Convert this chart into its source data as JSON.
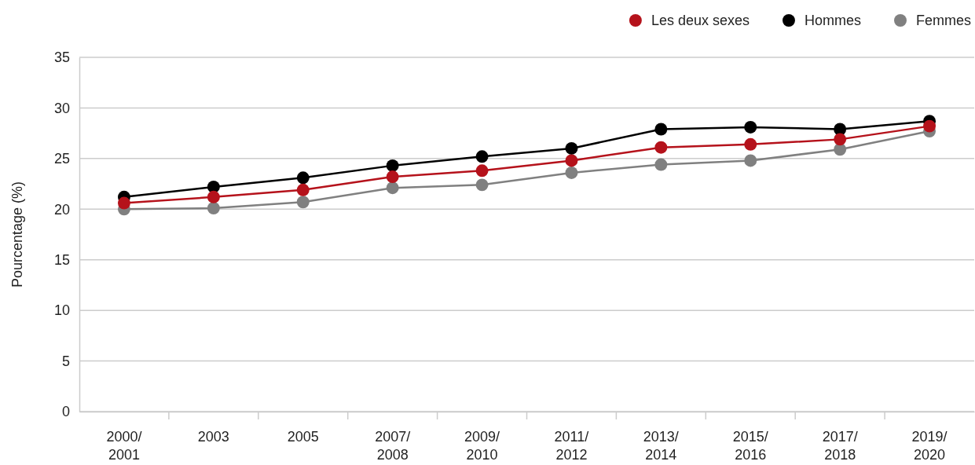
{
  "chart_data": {
    "type": "line",
    "ylabel": "Pourcentage (%)",
    "categories": [
      "2000/2001",
      "2003",
      "2005",
      "2007/2008",
      "2009/2010",
      "2011/2012",
      "2013/2014",
      "2015/2016",
      "2017/2018",
      "2019/2020"
    ],
    "series": [
      {
        "name": "Les deux sexes",
        "color": "#b5121b",
        "values": [
          20.6,
          21.2,
          21.9,
          23.2,
          23.8,
          24.8,
          26.1,
          26.4,
          26.9,
          28.2
        ]
      },
      {
        "name": "Hommes",
        "color": "#000000",
        "values": [
          21.2,
          22.2,
          23.1,
          24.3,
          25.2,
          26.0,
          27.9,
          28.1,
          27.9,
          28.7
        ]
      },
      {
        "name": "Femmes",
        "color": "#808080",
        "values": [
          20.0,
          20.1,
          20.7,
          22.1,
          22.4,
          23.6,
          24.4,
          24.8,
          25.9,
          27.7
        ]
      }
    ],
    "ylim": [
      0,
      35
    ],
    "yticks": [
      0,
      5,
      10,
      15,
      20,
      25,
      30,
      35
    ],
    "grid": "y",
    "legend": "top right",
    "marker": "circle",
    "line_style": "solid"
  }
}
